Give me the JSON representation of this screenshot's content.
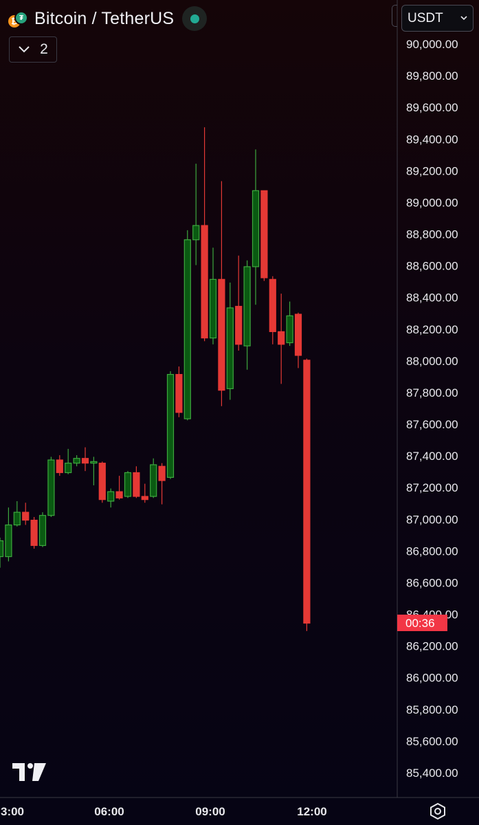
{
  "header": {
    "symbol": "Bitcoin / TetherUS",
    "coin_glyph": "₿",
    "quote_glyph": "₮",
    "indicators_count": "2",
    "collapse_icon": "chevron-down-icon",
    "currency": "USDT"
  },
  "price_label": {
    "countdown": "00:36",
    "color": "#f23645"
  },
  "colors": {
    "up": "#3da83e",
    "up_body": "#0a5a12",
    "down": "#e53935",
    "axis_text": "#e8e8ec",
    "axis_line": "#3a3a44"
  },
  "chart_data": {
    "type": "candlestick",
    "title": "Bitcoin / TetherUS",
    "ylim": [
      85300,
      90050
    ],
    "x_ticks": [
      "3:00",
      "06:00",
      "09:00",
      "12:00"
    ],
    "y_ticks": [
      "85,400.00",
      "85,600.00",
      "85,800.00",
      "86,000.00",
      "86,200.00",
      "86,400.00",
      "86,600.00",
      "86,800.00",
      "87,000.00",
      "87,200.00",
      "87,400.00",
      "87,600.00",
      "87,800.00",
      "88,000.00",
      "88,200.00",
      "88,400.00",
      "88,600.00",
      "88,800.00",
      "89,000.00",
      "89,200.00",
      "89,400.00",
      "89,600.00",
      "89,800.00",
      "90,000.00"
    ],
    "y_tick_values": [
      85400,
      85600,
      85800,
      86000,
      86200,
      86400,
      86600,
      86800,
      87000,
      87200,
      87400,
      87600,
      87800,
      88000,
      88200,
      88400,
      88600,
      88800,
      89000,
      89200,
      89400,
      89600,
      89800,
      90000
    ],
    "candles": [
      {
        "t": "02:45",
        "open": 86760,
        "close": 86860,
        "high": 86880,
        "low": 86690
      },
      {
        "t": "03:00",
        "open": 86760,
        "close": 86960,
        "high": 87070,
        "low": 86730
      },
      {
        "t": "03:15",
        "open": 86960,
        "close": 87040,
        "high": 87110,
        "low": 86950
      },
      {
        "t": "03:30",
        "open": 87040,
        "close": 86990,
        "high": 87100,
        "low": 86960
      },
      {
        "t": "03:45",
        "open": 86990,
        "close": 86830,
        "high": 87010,
        "low": 86810
      },
      {
        "t": "04:00",
        "open": 86830,
        "close": 87020,
        "high": 87040,
        "low": 86820
      },
      {
        "t": "04:15",
        "open": 87020,
        "close": 87370,
        "high": 87390,
        "low": 87010
      },
      {
        "t": "04:30",
        "open": 87370,
        "close": 87290,
        "high": 87400,
        "low": 87270
      },
      {
        "t": "04:45",
        "open": 87290,
        "close": 87350,
        "high": 87440,
        "low": 87280
      },
      {
        "t": "05:00",
        "open": 87350,
        "close": 87380,
        "high": 87400,
        "low": 87330
      },
      {
        "t": "05:15",
        "open": 87380,
        "close": 87350,
        "high": 87450,
        "low": 87300
      },
      {
        "t": "05:30",
        "open": 87350,
        "close": 87360,
        "high": 87390,
        "low": 87210
      },
      {
        "t": "05:45",
        "open": 87350,
        "close": 87120,
        "high": 87360,
        "low": 87100
      },
      {
        "t": "06:00",
        "open": 87110,
        "close": 87170,
        "high": 87190,
        "low": 87070
      },
      {
        "t": "06:15",
        "open": 87170,
        "close": 87130,
        "high": 87270,
        "low": 87120
      },
      {
        "t": "06:30",
        "open": 87140,
        "close": 87290,
        "high": 87300,
        "low": 87130
      },
      {
        "t": "06:45",
        "open": 87290,
        "close": 87140,
        "high": 87330,
        "low": 87130
      },
      {
        "t": "07:00",
        "open": 87140,
        "close": 87120,
        "high": 87220,
        "low": 87100
      },
      {
        "t": "07:15",
        "open": 87140,
        "close": 87340,
        "high": 87380,
        "low": 87130
      },
      {
        "t": "07:30",
        "open": 87330,
        "close": 87240,
        "high": 87350,
        "low": 87090
      },
      {
        "t": "07:45",
        "open": 87260,
        "close": 87910,
        "high": 87930,
        "low": 87250
      },
      {
        "t": "08:00",
        "open": 87910,
        "close": 87670,
        "high": 87960,
        "low": 87640
      },
      {
        "t": "08:15",
        "open": 87630,
        "close": 88760,
        "high": 88820,
        "low": 87620
      },
      {
        "t": "08:30",
        "open": 88760,
        "close": 88850,
        "high": 89240,
        "low": 88600
      },
      {
        "t": "08:45",
        "open": 88850,
        "close": 88140,
        "high": 89470,
        "low": 88120
      },
      {
        "t": "09:00",
        "open": 88140,
        "close": 88510,
        "high": 88710,
        "low": 88100
      },
      {
        "t": "09:15",
        "open": 88510,
        "close": 87810,
        "high": 89130,
        "low": 87710
      },
      {
        "t": "09:30",
        "open": 87820,
        "close": 88330,
        "high": 88490,
        "low": 87750
      },
      {
        "t": "09:45",
        "open": 88340,
        "close": 88100,
        "high": 88660,
        "low": 88060
      },
      {
        "t": "10:00",
        "open": 88090,
        "close": 88590,
        "high": 88630,
        "low": 87940
      },
      {
        "t": "10:15",
        "open": 88590,
        "close": 89070,
        "high": 89330,
        "low": 88350
      },
      {
        "t": "10:30",
        "open": 89070,
        "close": 88520,
        "high": 89070,
        "low": 88500
      },
      {
        "t": "10:45",
        "open": 88510,
        "close": 88180,
        "high": 88530,
        "low": 88100
      },
      {
        "t": "11:00",
        "open": 88180,
        "close": 88100,
        "high": 88420,
        "low": 87850
      },
      {
        "t": "11:15",
        "open": 88110,
        "close": 88280,
        "high": 88370,
        "low": 88090
      },
      {
        "t": "11:30",
        "open": 88290,
        "close": 88030,
        "high": 88300,
        "low": 87950
      },
      {
        "t": "11:45",
        "open": 88000,
        "close": 86340,
        "high": 88010,
        "low": 86290
      }
    ]
  }
}
